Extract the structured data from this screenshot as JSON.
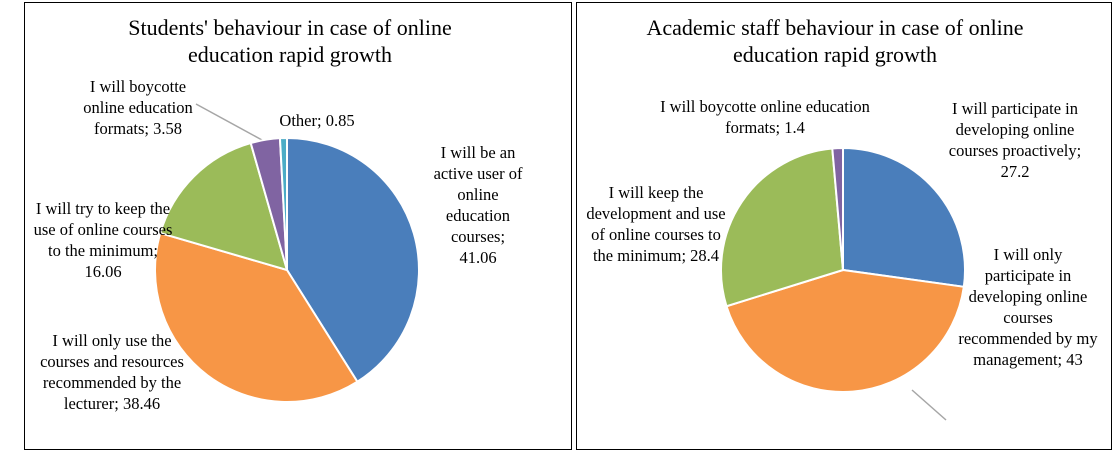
{
  "chart_data": [
    {
      "type": "pie",
      "title": "Students' behaviour in case of online education rapid growth",
      "categories": [
        "I will be an active user of online education courses",
        "I will only use the courses and resources recommended by the lecturer",
        "I will try to keep the use of online courses to the minimum",
        "I will boycotte online education formats",
        "Other"
      ],
      "values": [
        41.06,
        38.46,
        16.06,
        3.58,
        0.85
      ],
      "colors": [
        "#4a7ebb",
        "#f79646",
        "#9bbb59",
        "#8064a2",
        "#4bacc6"
      ],
      "separator": "; "
    },
    {
      "type": "pie",
      "title": "Academic staff behaviour in case of online education rapid growth",
      "categories": [
        "I will participate in developing online courses proactively",
        "I will only participate in developing online courses recommended by my management",
        "I will keep the development and use of online courses to the minimum",
        "I will boycotte online education formats"
      ],
      "values": [
        27.2,
        43,
        28.4,
        1.4
      ],
      "colors": [
        "#4a7ebb",
        "#f79646",
        "#9bbb59",
        "#8064a2"
      ],
      "separator": "; "
    }
  ]
}
